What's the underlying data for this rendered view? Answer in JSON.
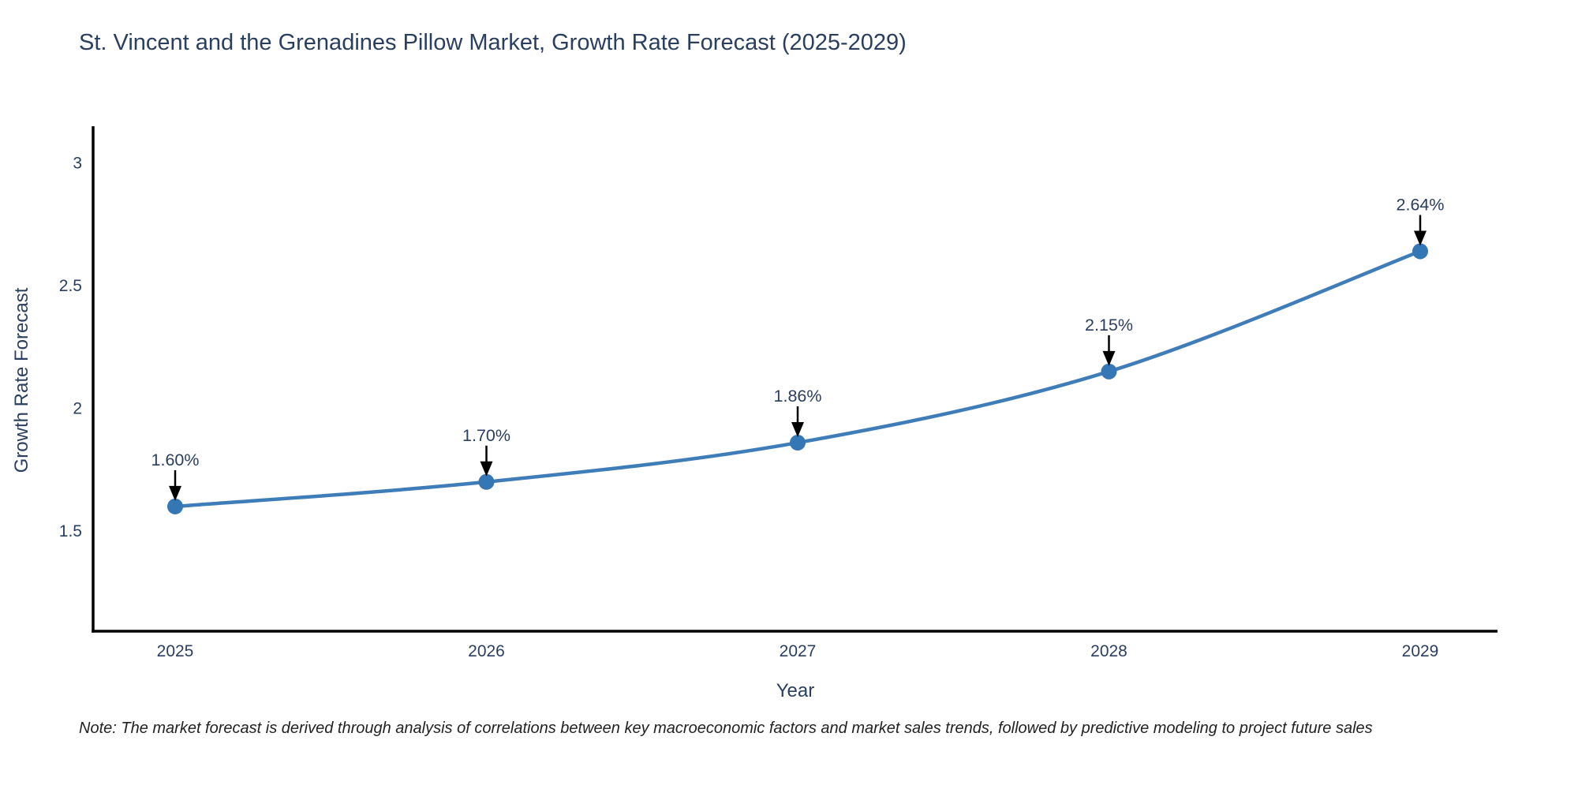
{
  "title": "St. Vincent and the Grenadines Pillow Market, Growth Rate Forecast (2025-2029)",
  "note": "Note: The market forecast is derived through analysis of correlations between key macroeconomic factors and market sales trends, followed by predictive modeling to project future sales",
  "chart_data": {
    "type": "line",
    "title": "St. Vincent and the Grenadines Pillow Market, Growth Rate Forecast (2025-2029)",
    "xlabel": "Year",
    "ylabel": "Growth Rate Forecast",
    "x": [
      2025,
      2026,
      2027,
      2028,
      2029
    ],
    "values": [
      1.6,
      1.7,
      1.86,
      2.15,
      2.64
    ],
    "point_labels": [
      "1.60%",
      "1.70%",
      "1.86%",
      "2.15%",
      "2.64%"
    ],
    "yticks": [
      1.5,
      2,
      2.5,
      3
    ],
    "ytick_labels": [
      "1.5",
      "2",
      "2.5",
      "3"
    ],
    "ylim": [
      1.09,
      3.16
    ],
    "line_shape": "spline",
    "grid": false,
    "legend_position": "none",
    "colors": {
      "line": "#3f7db8",
      "marker": "#3576b4",
      "axis": "#000000",
      "tick_text": "#2a3f5f",
      "annotation_text": "#2a3f5f",
      "annotation_arrow": "#000000"
    }
  }
}
